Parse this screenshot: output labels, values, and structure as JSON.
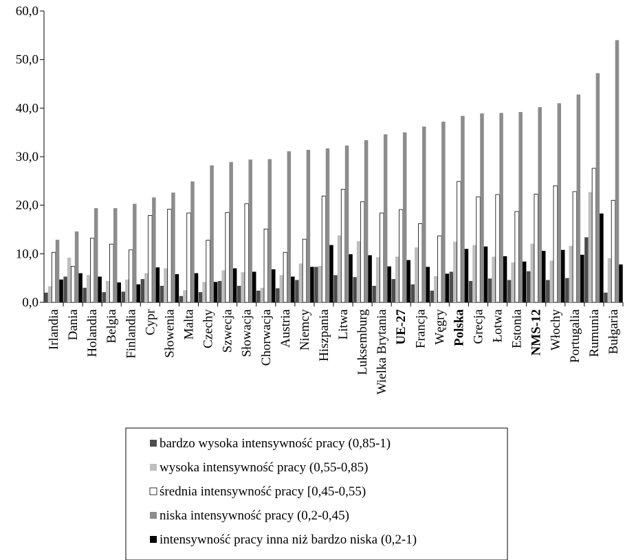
{
  "chart_data": {
    "type": "bar",
    "categories": [
      "Irlandia",
      "Dania",
      "Holandia",
      "Belgia",
      "Finlandia",
      "Cypr",
      "Słowenia",
      "Malta",
      "Czechy",
      "Szwecja",
      "Słowacja",
      "Chorwacja",
      "Austria",
      "Niemcy",
      "Hiszpania",
      "Litwa",
      "Luksemburg",
      "Wielka Brytania",
      "UE-27",
      "Francja",
      "Węgry",
      "Polska",
      "Grecja",
      "Łotwa",
      "Estonia",
      "NMS-12",
      "Włochy",
      "Portugalia",
      "Rumunia",
      "Bułgaria"
    ],
    "bold_categories": [
      "UE-27",
      "Polska",
      "NMS-12"
    ],
    "series": [
      {
        "name": "bardzo wysoka intensywność pracy (0,85-1)",
        "color": "#4d4d4d",
        "values": [
          2.0,
          5.3,
          3.0,
          2.1,
          2.2,
          4.8,
          3.4,
          1.3,
          2.1,
          4.4,
          3.4,
          2.4,
          2.9,
          4.6,
          7.3,
          5.6,
          5.2,
          3.4,
          4.8,
          3.7,
          2.4,
          6.3,
          4.4,
          4.9,
          4.6,
          6.4,
          4.6,
          5.0,
          13.4,
          2.0
        ]
      },
      {
        "name": "wysoka intensywność pracy (0,55-0,85)",
        "color": "#bfbfbf",
        "values": [
          3.3,
          9.2,
          5.6,
          4.4,
          4.7,
          6.0,
          7.0,
          2.5,
          4.2,
          6.6,
          6.2,
          3.0,
          5.6,
          8.0,
          7.5,
          13.8,
          12.6,
          9.3,
          9.4,
          11.3,
          5.4,
          12.5,
          11.8,
          9.4,
          8.2,
          12.1,
          8.6,
          11.6,
          22.7,
          9.1
        ]
      },
      {
        "name": "średnia intensywność pracy [0,45-0,55)",
        "color": "#ffffff",
        "values": [
          10.3,
          7.4,
          13.2,
          12.0,
          10.8,
          17.9,
          19.2,
          18.4,
          12.8,
          18.5,
          20.3,
          15.1,
          10.3,
          13.0,
          21.9,
          23.3,
          20.7,
          18.4,
          19.1,
          16.2,
          13.7,
          24.9,
          21.7,
          22.2,
          18.7,
          22.3,
          24.0,
          22.8,
          27.6,
          21.0
        ]
      },
      {
        "name": "niska intensywność pracy (0,2-0,45)",
        "color": "#8c8c8c",
        "values": [
          12.9,
          14.6,
          19.4,
          19.4,
          20.3,
          21.6,
          22.6,
          24.9,
          28.2,
          28.9,
          29.4,
          29.5,
          31.1,
          31.4,
          31.7,
          32.3,
          33.4,
          34.6,
          35.0,
          36.2,
          37.2,
          38.4,
          38.9,
          39.0,
          39.2,
          40.2,
          41.0,
          42.8,
          47.2,
          54.0
        ]
      },
      {
        "name": "intensywność pracy inna niż bardzo niska (0,2-1)",
        "color": "#000000",
        "values": [
          4.7,
          6.0,
          5.3,
          4.1,
          3.7,
          7.2,
          5.8,
          6.0,
          4.2,
          7.0,
          6.3,
          6.8,
          5.3,
          7.3,
          11.8,
          9.9,
          9.7,
          7.4,
          8.7,
          7.3,
          5.9,
          11.0,
          11.5,
          9.5,
          8.4,
          10.6,
          10.8,
          9.8,
          18.3,
          7.8
        ]
      }
    ],
    "yticks": [
      "0,0",
      "10,0",
      "20,0",
      "30,0",
      "40,0",
      "50,0",
      "60,0"
    ],
    "ylim": [
      0,
      60
    ],
    "grid": false,
    "legend_position": "bottom"
  }
}
